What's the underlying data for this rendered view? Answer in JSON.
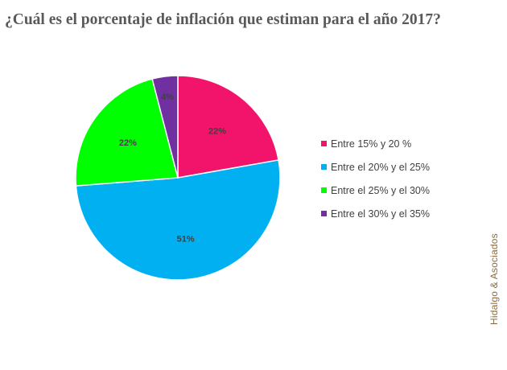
{
  "chart_data": {
    "type": "pie",
    "title": "¿Cuál es el porcentaje de inflación que estiman para el año 2017?",
    "categories": [
      "Entre 15% y 20 %",
      "Entre el 20% y el 25%",
      "Entre el 25% y el 30%",
      "Entre el 30% y el 35%"
    ],
    "values": [
      22,
      51,
      22,
      4
    ],
    "data_labels": [
      "22%",
      "51%",
      "22%",
      "4%"
    ],
    "colors": [
      "#f2146b",
      "#00b0f0",
      "#00ff00",
      "#7030a0"
    ],
    "legend_position": "right"
  },
  "watermark": "Hidalgo & Asociados"
}
